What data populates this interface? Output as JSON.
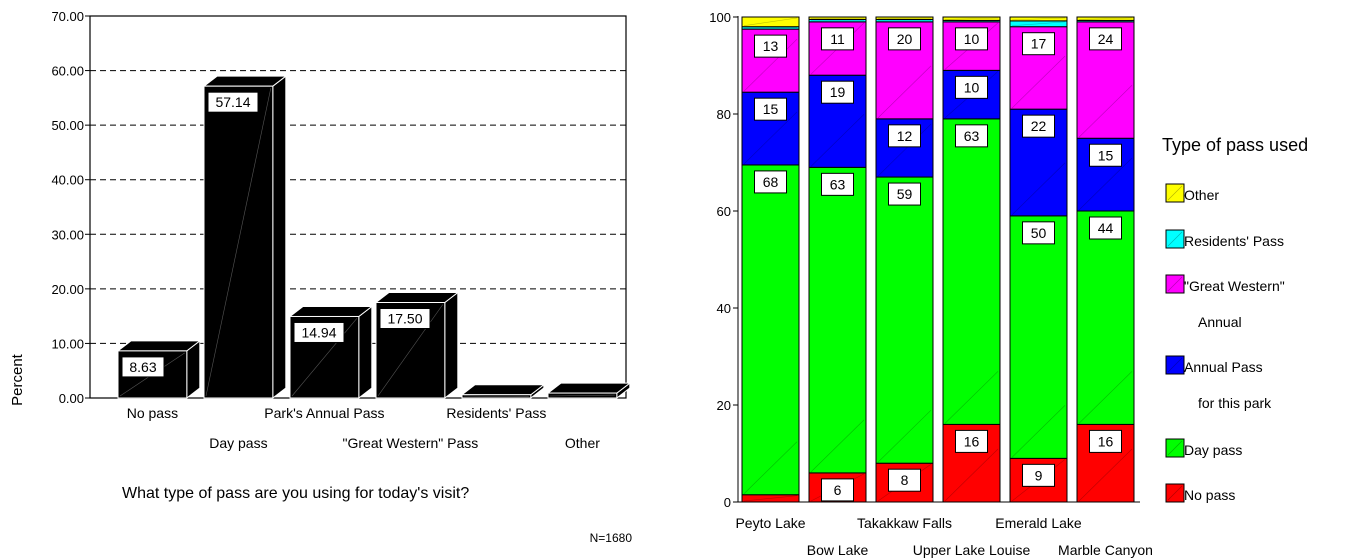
{
  "chart_data": [
    {
      "type": "bar",
      "ylabel": "Percent",
      "xlabel": "What type of pass are you using for today's visit?",
      "note": "N=1680",
      "ylim": [
        0,
        70
      ],
      "yticks": [
        "0.00",
        "10.00",
        "20.00",
        "30.00",
        "40.00",
        "50.00",
        "60.00",
        "70.00"
      ],
      "grid": true,
      "categories": [
        "No pass",
        "Day pass",
        "Park's Annual Pass",
        "\"Great Western\" Pass",
        "Residents' Pass",
        "Other"
      ],
      "values": [
        8.63,
        57.14,
        14.94,
        17.5,
        0.6,
        0.9
      ],
      "data_labels": [
        "8.63",
        "57.14",
        "14.94",
        "17.50",
        "",
        ""
      ],
      "bar_color": "#000000"
    },
    {
      "type": "bar",
      "stacked": true,
      "ylim": [
        0,
        100
      ],
      "yticks": [
        "0",
        "20",
        "40",
        "60",
        "80",
        "100"
      ],
      "categories": [
        "Peyto Lake",
        "Bow Lake",
        "Takakkaw Falls",
        "Upper Lake Louise",
        "Emerald Lake",
        "Marble Canyon"
      ],
      "legend_title": "Type of pass used",
      "legend_position": "right",
      "series": [
        {
          "name": "No pass",
          "color": "#ff0000",
          "values": [
            1.5,
            6,
            8,
            16,
            9,
            16
          ],
          "labels": [
            "",
            "6",
            "8",
            "16",
            "9",
            "16"
          ]
        },
        {
          "name": "Day pass",
          "color": "#00ff00",
          "values": [
            68,
            63,
            59,
            63,
            50,
            44
          ],
          "labels": [
            "68",
            "63",
            "59",
            "63",
            "50",
            "44"
          ]
        },
        {
          "name": "Annual Pass for this park",
          "legend_lines": [
            "Annual Pass",
            "for this park"
          ],
          "color": "#0000ff",
          "values": [
            15,
            19,
            12,
            10,
            22,
            15
          ],
          "labels": [
            "15",
            "19",
            "12",
            "10",
            "22",
            "15"
          ]
        },
        {
          "name": "\"Great Western\" Annual",
          "legend_lines": [
            "\"Great Western\"",
            "Annual"
          ],
          "color": "#ff00ff",
          "values": [
            13,
            11,
            20,
            10,
            17,
            24
          ],
          "labels": [
            "13",
            "11",
            "20",
            "10",
            "17",
            "24"
          ]
        },
        {
          "name": "Residents' Pass",
          "color": "#00ffff",
          "values": [
            0.5,
            0.5,
            0.5,
            0.3,
            1.2,
            0.3
          ],
          "labels": [
            "",
            "",
            "",
            "",
            "",
            ""
          ]
        },
        {
          "name": "Other",
          "color": "#ffff00",
          "values": [
            2,
            0.5,
            0.5,
            0.7,
            0.8,
            0.7
          ],
          "labels": [
            "",
            "",
            "",
            "",
            "",
            ""
          ]
        }
      ]
    }
  ]
}
